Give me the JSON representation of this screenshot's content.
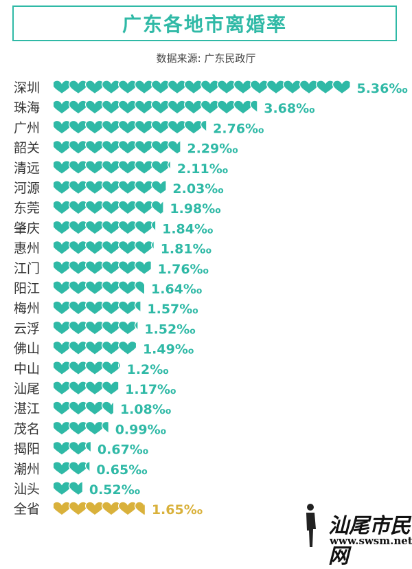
{
  "page": {
    "title": "广东各地市离婚率",
    "source": "数据来源: 广东民政厅"
  },
  "colors": {
    "teal": "#2fb9a6",
    "gold": "#d9b13b"
  },
  "watermark": {
    "cn": "汕尾市民网",
    "url": "www.swsm.net"
  },
  "chart_data": {
    "type": "bar",
    "unit": "‰",
    "categories": [
      "深圳",
      "珠海",
      "广州",
      "韶关",
      "清远",
      "河源",
      "东莞",
      "肇庆",
      "惠州",
      "江门",
      "阳江",
      "梅州",
      "云浮",
      "佛山",
      "中山",
      "汕尾",
      "湛江",
      "茂名",
      "揭阳",
      "潮州",
      "汕头",
      "全省"
    ],
    "values": [
      5.36,
      3.68,
      2.76,
      2.29,
      2.11,
      2.03,
      1.98,
      1.84,
      1.81,
      1.76,
      1.64,
      1.57,
      1.52,
      1.49,
      1.2,
      1.17,
      1.08,
      0.99,
      0.67,
      0.65,
      0.52,
      1.65
    ],
    "value_labels": [
      "5.36‰",
      "3.68‰",
      "2.76‰",
      "2.29‰",
      "2.11‰",
      "2.03‰",
      "1.98‰",
      "1.84‰",
      "1.81‰",
      "1.76‰",
      "1.64‰",
      "1.57‰",
      "1.52‰",
      "1.49‰",
      "1.2‰",
      "1.17‰",
      "1.08‰",
      "0.99‰",
      "0.67‰",
      "0.65‰",
      "0.52‰",
      "1.65‰"
    ],
    "highlight": "全省"
  }
}
